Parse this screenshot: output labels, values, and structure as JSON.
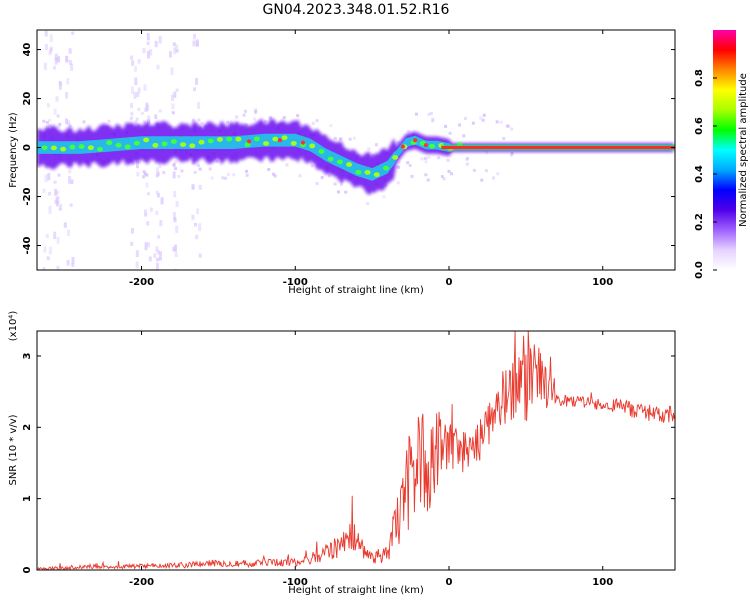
{
  "title": "GN04.2023.348.01.52.R16",
  "colors": {
    "background": "#ffffff",
    "snr_line": "#e83a2e",
    "spectral_blob_outer": "#5a00e0",
    "spectral_haze": "#c8a6ff",
    "spectral_core": "#ff3030"
  },
  "chart_data": [
    {
      "type": "heatmap",
      "xlabel": "Height of straight line (km)",
      "ylabel": "Frequency (Hz)",
      "xlim": [
        -268,
        147
      ],
      "ylim": [
        -50,
        48
      ],
      "x_ticks": [
        -200,
        -100,
        0,
        100
      ],
      "x_tick_labels": [
        "-200",
        "-100",
        "0",
        "100"
      ],
      "y_ticks": [
        -40,
        -20,
        0,
        20,
        40
      ],
      "y_tick_labels": [
        "-40",
        "-20",
        "0",
        "20",
        "40"
      ],
      "ridge": {
        "x": [
          -265,
          -240,
          -220,
          -200,
          -180,
          -160,
          -140,
          -120,
          -100,
          -90,
          -80,
          -70,
          -60,
          -50,
          -40,
          -33,
          -28,
          -22,
          -15,
          -8,
          0,
          20,
          60,
          100,
          147
        ],
        "y": [
          0,
          0,
          1,
          2,
          2,
          2,
          2,
          3,
          3,
          1,
          -3,
          -6,
          -9,
          -11,
          -8,
          -2,
          2,
          3,
          1,
          1,
          0,
          0,
          0,
          0,
          0
        ]
      },
      "colorbar": {
        "label": "Normalized spectral amplitude",
        "range": [
          0,
          1
        ],
        "ticks": [
          0.0,
          0.2,
          0.4,
          0.6,
          0.8
        ],
        "tick_labels": [
          "0.0",
          "0.2",
          "0.4",
          "0.6",
          "0.8"
        ],
        "colors": [
          "#ffffff",
          "#e6d2ff",
          "#a060ff",
          "#5000e8",
          "#0000ff",
          "#00aaff",
          "#00ffff",
          "#00ff00",
          "#aaff00",
          "#ffff00",
          "#ff8800",
          "#ff0000",
          "#ff00aa"
        ]
      },
      "grid": false
    },
    {
      "type": "line",
      "xlabel": "Height of straight line (km)",
      "ylabel": "SNR (10 * v/v)",
      "y_scale_note": "(x10⁴)",
      "xlim": [
        -268,
        147
      ],
      "ylim": [
        0,
        3.35
      ],
      "x_ticks": [
        -200,
        -100,
        0,
        100
      ],
      "x_tick_labels": [
        "-200",
        "-100",
        "0",
        "100"
      ],
      "y_ticks": [
        0,
        1,
        2,
        3
      ],
      "y_tick_labels": [
        "0",
        "1",
        "2",
        "3"
      ],
      "series": [
        {
          "color": "#e83a2e",
          "x": [
            -268,
            -250,
            -230,
            -210,
            -190,
            -170,
            -150,
            -130,
            -110,
            -90,
            -80,
            -70,
            -65,
            -60,
            -50,
            -40,
            -35,
            -30,
            -25,
            -20,
            -15,
            -10,
            -5,
            0,
            5,
            10,
            20,
            30,
            40,
            50,
            55,
            60,
            70,
            80,
            90,
            100,
            110,
            120,
            130,
            140,
            147
          ],
          "y": [
            0.01,
            0.03,
            0.05,
            0.05,
            0.06,
            0.07,
            0.1,
            0.09,
            0.1,
            0.15,
            0.25,
            0.35,
            0.55,
            0.4,
            0.2,
            0.2,
            0.6,
            0.9,
            1.3,
            1.6,
            1.45,
            1.5,
            1.9,
            1.75,
            1.7,
            1.65,
            1.85,
            2.3,
            2.5,
            2.55,
            2.9,
            2.6,
            2.4,
            2.35,
            2.35,
            2.3,
            2.3,
            2.25,
            2.2,
            2.15,
            2.2
          ],
          "noise_amplitude": [
            0.02,
            0.03,
            0.03,
            0.03,
            0.03,
            0.04,
            0.05,
            0.05,
            0.06,
            0.08,
            0.12,
            0.18,
            0.3,
            0.2,
            0.12,
            0.12,
            0.35,
            0.6,
            0.7,
            0.7,
            0.7,
            0.6,
            0.5,
            0.4,
            0.3,
            0.3,
            0.35,
            0.4,
            0.45,
            0.5,
            0.5,
            0.4,
            0.1,
            0.08,
            0.08,
            0.08,
            0.1,
            0.12,
            0.12,
            0.12,
            0.12
          ]
        }
      ],
      "grid": false
    }
  ]
}
